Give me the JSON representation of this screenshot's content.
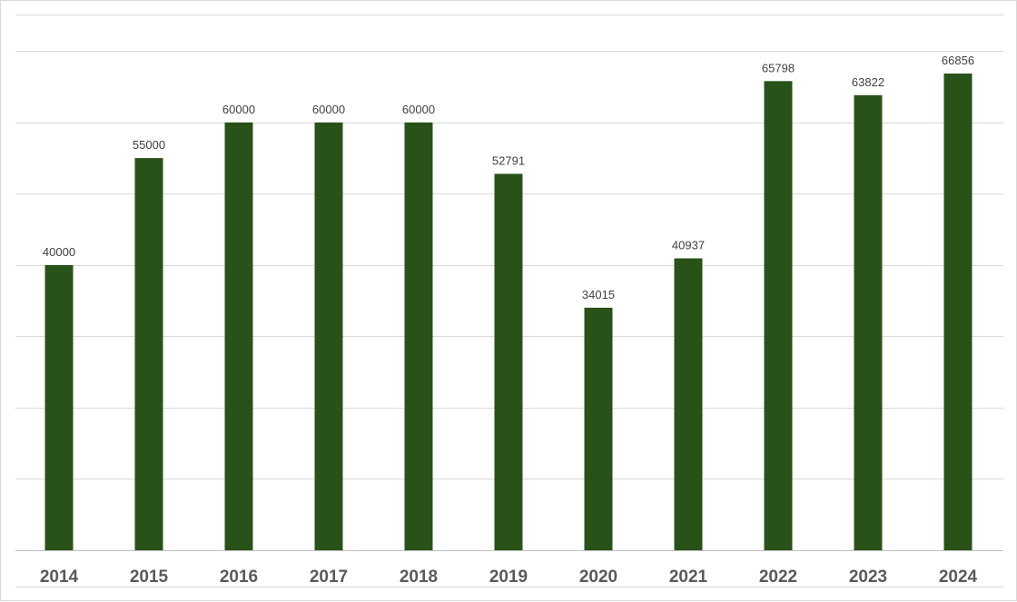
{
  "chart_data": {
    "type": "bar",
    "title": "",
    "xlabel": "",
    "ylabel": "",
    "categories": [
      "2014",
      "2015",
      "2016",
      "2017",
      "2018",
      "2019",
      "2020",
      "2021",
      "2022",
      "2023",
      "2024"
    ],
    "values": [
      40000,
      55000,
      60000,
      60000,
      60000,
      52791,
      34015,
      40937,
      65798,
      63822,
      66856
    ],
    "ylim": [
      0,
      75000
    ],
    "y_gridlines": [
      0,
      10000,
      20000,
      30000,
      40000,
      50000,
      60000,
      70000
    ],
    "y_tick_labels_visible": false,
    "grid": true,
    "legend": "none",
    "bar_color": "#285218",
    "data_labels": true
  }
}
